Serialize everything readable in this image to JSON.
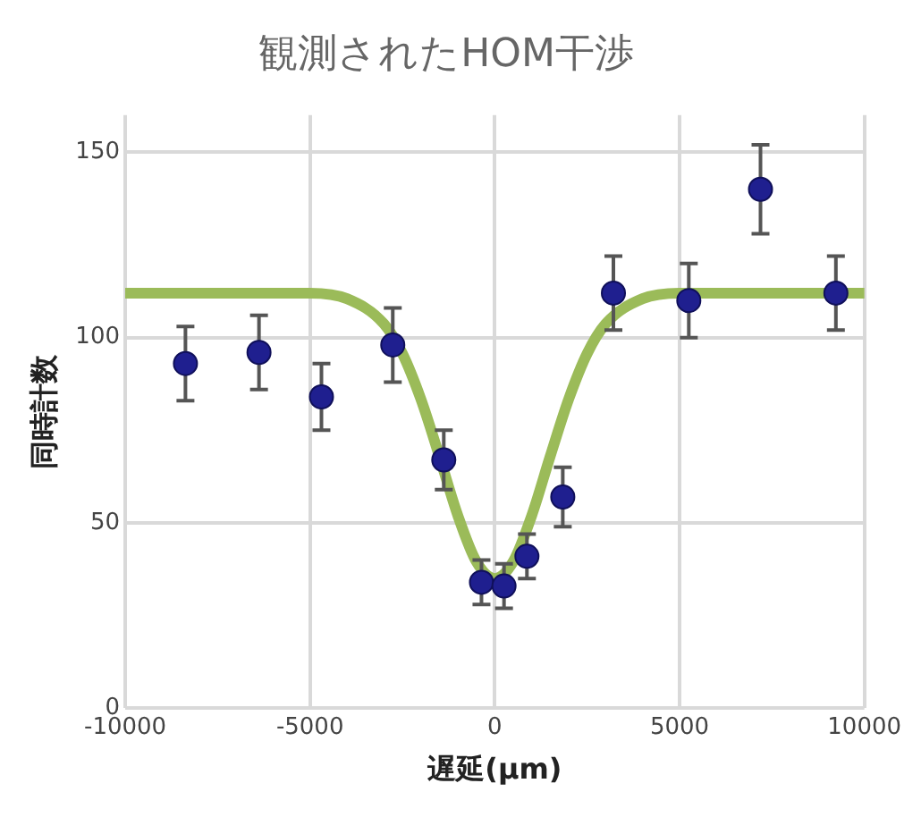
{
  "chart_data": {
    "type": "scatter",
    "title": "観測されたHOM干渉",
    "xlabel": "遅延(μm)",
    "ylabel": "同時計数",
    "xlim": [
      -10000,
      10000
    ],
    "xticks": [
      -10000,
      -5000,
      0,
      5000,
      10000
    ],
    "ylim": [
      0,
      160
    ],
    "yticks": [
      0,
      50,
      100,
      150
    ],
    "grid": true,
    "legend": false,
    "marker": "circle",
    "series": [
      {
        "type": "line",
        "color": "#9bbb59",
        "marker": "none",
        "x": [
          -10000,
          -5000,
          -4000,
          -3000,
          -2500,
          -2000,
          -1500,
          -1000,
          -500,
          0,
          500,
          1000,
          1500,
          2000,
          2500,
          3000,
          4000,
          5000,
          10000
        ],
        "values": [
          112,
          112,
          110.5,
          103.7,
          95.7,
          83.4,
          68,
          52,
          39.6,
          35,
          39.6,
          52,
          68,
          83.4,
          95.7,
          103.7,
          110.5,
          112,
          112
        ]
      },
      {
        "color": "#1f1f8f",
        "x": [
          -8370,
          -6380,
          -4690,
          -2760,
          -1380,
          -360,
          250,
          870,
          1840,
          3210,
          5250,
          7190,
          9230
        ],
        "values": [
          93,
          96,
          84,
          98,
          67,
          34,
          33,
          41,
          57,
          112,
          110,
          140,
          112
        ],
        "errors": [
          10,
          10,
          9,
          10,
          8,
          6,
          6,
          6,
          8,
          10,
          10,
          12,
          10
        ]
      }
    ]
  }
}
